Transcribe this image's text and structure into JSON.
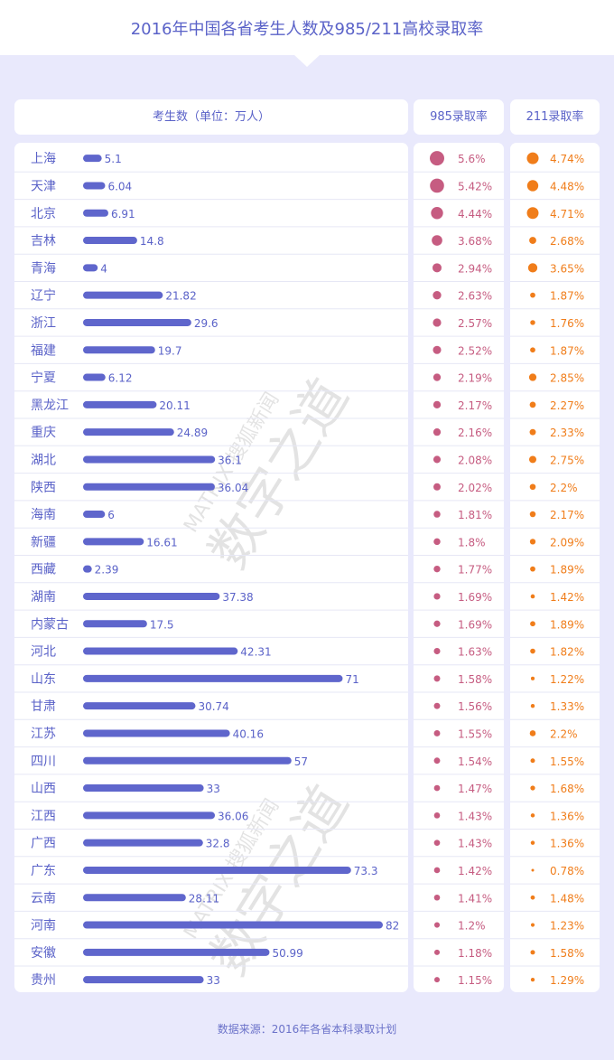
{
  "header": {
    "title": "2016年中国各省考生人数及985/211高校录取率"
  },
  "columns": {
    "examinees": "考生数（单位：万人）",
    "rate985": "985录取率",
    "rate211": "211录取率"
  },
  "footer": {
    "source": "数据来源：2016年各省本科录取计划"
  },
  "watermark": {
    "line1": "MATRIX 搜狐新闻",
    "line2": "数字之道"
  },
  "colors": {
    "bar": "#5f66cc",
    "dot985": "#c65c81",
    "dot211": "#f07d1a",
    "label": "#5a62c8"
  },
  "chart_data": {
    "type": "table",
    "columns": [
      "考生数（单位：万人）",
      "985录取率",
      "211录取率"
    ],
    "rows": [
      {
        "province": "上海",
        "examinees": 5.1,
        "rate985": "5.6%",
        "rate211": "4.74%"
      },
      {
        "province": "天津",
        "examinees": 6.04,
        "rate985": "5.42%",
        "rate211": "4.48%"
      },
      {
        "province": "北京",
        "examinees": 6.91,
        "rate985": "4.44%",
        "rate211": "4.71%"
      },
      {
        "province": "吉林",
        "examinees": 14.8,
        "rate985": "3.68%",
        "rate211": "2.68%"
      },
      {
        "province": "青海",
        "examinees": 4,
        "rate985": "2.94%",
        "rate211": "3.65%"
      },
      {
        "province": "辽宁",
        "examinees": 21.82,
        "rate985": "2.63%",
        "rate211": "1.87%"
      },
      {
        "province": "浙江",
        "examinees": 29.6,
        "rate985": "2.57%",
        "rate211": "1.76%"
      },
      {
        "province": "福建",
        "examinees": 19.7,
        "rate985": "2.52%",
        "rate211": "1.87%"
      },
      {
        "province": "宁夏",
        "examinees": 6.12,
        "rate985": "2.19%",
        "rate211": "2.85%"
      },
      {
        "province": "黑龙江",
        "examinees": 20.11,
        "rate985": "2.17%",
        "rate211": "2.27%"
      },
      {
        "province": "重庆",
        "examinees": 24.89,
        "rate985": "2.16%",
        "rate211": "2.33%"
      },
      {
        "province": "湖北",
        "examinees": 36.1,
        "rate985": "2.08%",
        "rate211": "2.75%"
      },
      {
        "province": "陕西",
        "examinees": 36.04,
        "rate985": "2.02%",
        "rate211": "2.2%"
      },
      {
        "province": "海南",
        "examinees": 6,
        "rate985": "1.81%",
        "rate211": "2.17%"
      },
      {
        "province": "新疆",
        "examinees": 16.61,
        "rate985": "1.8%",
        "rate211": "2.09%"
      },
      {
        "province": "西藏",
        "examinees": 2.39,
        "rate985": "1.77%",
        "rate211": "1.89%"
      },
      {
        "province": "湖南",
        "examinees": 37.38,
        "rate985": "1.69%",
        "rate211": "1.42%"
      },
      {
        "province": "内蒙古",
        "examinees": 17.5,
        "rate985": "1.69%",
        "rate211": "1.89%"
      },
      {
        "province": "河北",
        "examinees": 42.31,
        "rate985": "1.63%",
        "rate211": "1.82%"
      },
      {
        "province": "山东",
        "examinees": 71,
        "rate985": "1.58%",
        "rate211": "1.22%"
      },
      {
        "province": "甘肃",
        "examinees": 30.74,
        "rate985": "1.56%",
        "rate211": "1.33%"
      },
      {
        "province": "江苏",
        "examinees": 40.16,
        "rate985": "1.55%",
        "rate211": "2.2%"
      },
      {
        "province": "四川",
        "examinees": 57,
        "rate985": "1.54%",
        "rate211": "1.55%"
      },
      {
        "province": "山西",
        "examinees": 33,
        "rate985": "1.47%",
        "rate211": "1.68%"
      },
      {
        "province": "江西",
        "examinees": 36.06,
        "rate985": "1.43%",
        "rate211": "1.36%"
      },
      {
        "province": "广西",
        "examinees": 32.8,
        "rate985": "1.43%",
        "rate211": "1.36%"
      },
      {
        "province": "广东",
        "examinees": 73.3,
        "rate985": "1.42%",
        "rate211": "0.78%"
      },
      {
        "province": "云南",
        "examinees": 28.11,
        "rate985": "1.41%",
        "rate211": "1.48%"
      },
      {
        "province": "河南",
        "examinees": 82,
        "rate985": "1.2%",
        "rate211": "1.23%"
      },
      {
        "province": "安徽",
        "examinees": 50.99,
        "rate985": "1.18%",
        "rate211": "1.58%"
      },
      {
        "province": "贵州",
        "examinees": 33,
        "rate985": "1.15%",
        "rate211": "1.29%"
      }
    ]
  }
}
